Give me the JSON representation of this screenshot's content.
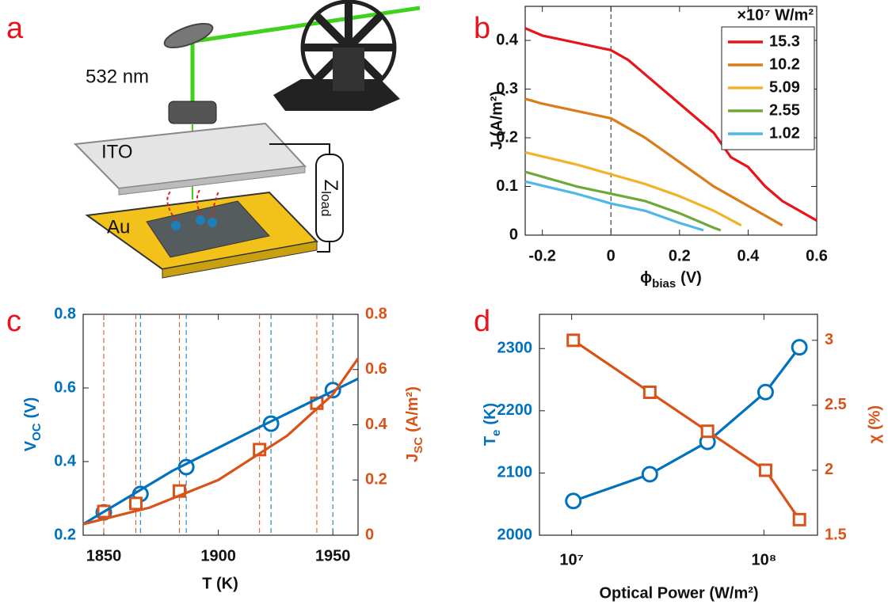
{
  "schematic": {
    "panel_label": "a",
    "laser_wavelength": "532 nm",
    "top_electrode": "ITO",
    "bottom_electrode": "Au",
    "load": {
      "main": "Z",
      "sub": "load"
    }
  },
  "chart_data": [
    {
      "type": "line",
      "panel_label": "b",
      "xlabel": {
        "main": "ϕ",
        "sub": "bias",
        "unit": "(V)"
      },
      "ylabel": "J (A/m²)",
      "xlim": [
        -0.25,
        0.6
      ],
      "xticks": [
        -0.2,
        0,
        0.2,
        0.4,
        0.6
      ],
      "ylim": [
        0,
        0.47
      ],
      "yticks": [
        0,
        0.1,
        0.2,
        0.3,
        0.4
      ],
      "vline": 0,
      "legend": "upper right",
      "legend_title": "×10⁷ W/m²",
      "series": [
        {
          "name": "15.3",
          "color": "#e8141c",
          "x": [
            -0.25,
            -0.2,
            -0.1,
            0,
            0.05,
            0.1,
            0.2,
            0.3,
            0.35,
            0.4,
            0.45,
            0.5,
            0.55,
            0.6
          ],
          "values": [
            0.425,
            0.41,
            0.395,
            0.38,
            0.36,
            0.33,
            0.27,
            0.21,
            0.16,
            0.14,
            0.1,
            0.07,
            0.05,
            0.03
          ]
        },
        {
          "name": "10.2",
          "color": "#d97c1a",
          "x": [
            -0.25,
            -0.2,
            -0.1,
            0,
            0.1,
            0.2,
            0.3,
            0.4,
            0.45,
            0.5
          ],
          "values": [
            0.28,
            0.27,
            0.255,
            0.24,
            0.2,
            0.15,
            0.1,
            0.06,
            0.04,
            0.02
          ]
        },
        {
          "name": "5.09",
          "color": "#f0b429",
          "x": [
            -0.25,
            -0.1,
            0,
            0.1,
            0.2,
            0.3,
            0.38
          ],
          "values": [
            0.17,
            0.145,
            0.125,
            0.105,
            0.08,
            0.05,
            0.02
          ]
        },
        {
          "name": "2.55",
          "color": "#6fa83a",
          "x": [
            -0.25,
            -0.1,
            0,
            0.1,
            0.2,
            0.3,
            0.32
          ],
          "values": [
            0.13,
            0.1,
            0.085,
            0.07,
            0.045,
            0.015,
            0.01
          ]
        },
        {
          "name": "1.02",
          "color": "#4fb8e8",
          "x": [
            -0.25,
            -0.1,
            0,
            0.1,
            0.2,
            0.27
          ],
          "values": [
            0.11,
            0.085,
            0.065,
            0.05,
            0.025,
            0.01
          ]
        }
      ]
    },
    {
      "type": "line",
      "panel_label": "c",
      "xlabel": "T (K)",
      "ylabel": {
        "main": "V",
        "sub": "OC",
        "unit": "(V)"
      },
      "y2label": {
        "main": "J",
        "sub": "SC",
        "unit": "(A/m²)"
      },
      "xlim": [
        1841,
        1961
      ],
      "xticks": [
        1850,
        1900,
        1950
      ],
      "ylim": [
        0.2,
        0.8
      ],
      "yticks": [
        0.2,
        0.4,
        0.6,
        0.8
      ],
      "ycolor": "#0072bd",
      "y2lim": [
        0,
        0.8
      ],
      "y2ticks": [
        0,
        0.2,
        0.4,
        0.6,
        0.8
      ],
      "y2color": "#d95319",
      "series": [
        {
          "color": "#0072bd",
          "marker": "circle",
          "guides": true,
          "x": [
            1850,
            1866,
            1886,
            1923,
            1950
          ],
          "values": [
            0.262,
            0.312,
            0.385,
            0.503,
            0.594
          ]
        },
        {
          "color": "#d95319",
          "axis": "y2",
          "marker": "square",
          "guides": true,
          "x": [
            1850,
            1864,
            1883,
            1918,
            1943
          ],
          "values": [
            0.086,
            0.115,
            0.16,
            0.31,
            0.478
          ]
        },
        {
          "color": "#0072bd",
          "x": [
            1841,
            1880,
            1920,
            1961
          ],
          "values": [
            0.23,
            0.375,
            0.5,
            0.625
          ]
        },
        {
          "color": "#d95319",
          "axis": "y2",
          "x": [
            1841,
            1870,
            1900,
            1930,
            1950,
            1961
          ],
          "values": [
            0.04,
            0.1,
            0.2,
            0.36,
            0.51,
            0.64
          ]
        }
      ]
    },
    {
      "type": "line",
      "panel_label": "d",
      "xscale": "log",
      "xlabel": "Optical Power (W/m²)",
      "ylabel": {
        "main": "T",
        "sub": "e",
        "unit": "(K)"
      },
      "y2label": "χ (%)",
      "xlim": [
        6800000,
        190000000
      ],
      "xticks": [
        {
          "value": 10000000,
          "label": "10⁷"
        },
        {
          "value": 100000000,
          "label": "10⁸"
        }
      ],
      "ylim": [
        2000,
        2355
      ],
      "yticks": [
        2000,
        2100,
        2200,
        2300
      ],
      "ycolor": "#0072bd",
      "y2lim": [
        1.5,
        3.2
      ],
      "y2ticks": [
        1.5,
        2,
        2.5,
        3
      ],
      "y2color": "#d95319",
      "x": [
        10200000,
        25500000,
        50900000,
        102000000,
        153000000
      ],
      "series": [
        {
          "color": "#0072bd",
          "marker": "circle",
          "connect": true,
          "values": [
            2055,
            2098,
            2150,
            2230,
            2302
          ]
        },
        {
          "color": "#d95319",
          "axis": "y2",
          "marker": "square",
          "connect": true,
          "values": [
            3,
            2.6,
            2.3,
            2,
            1.62
          ]
        }
      ]
    }
  ]
}
